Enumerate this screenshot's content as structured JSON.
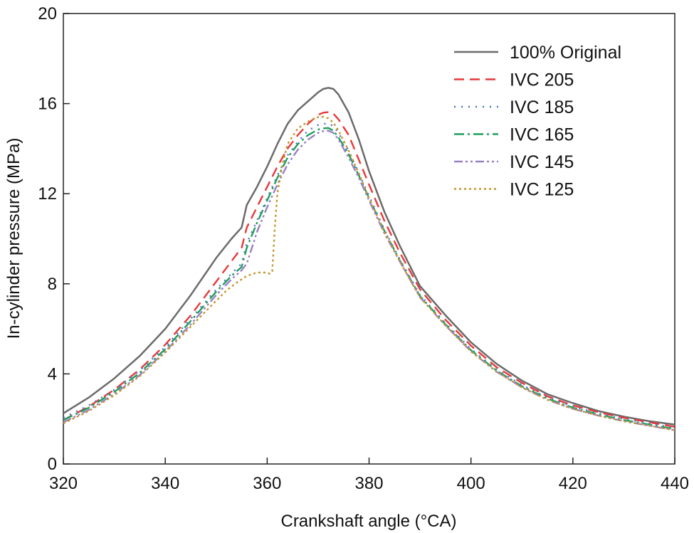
{
  "chart_data": {
    "type": "line",
    "title": "",
    "xlabel": "Crankshaft angle (°CA)",
    "ylabel": "In-cylinder pressure (MPa)",
    "xlim": [
      320,
      440
    ],
    "ylim": [
      0,
      20
    ],
    "xticks": [
      320,
      340,
      360,
      380,
      400,
      420,
      440
    ],
    "yticks": [
      0,
      4,
      8,
      12,
      16,
      20
    ],
    "grid": false,
    "legend": "top-right",
    "series": [
      {
        "name": "100% Original",
        "color": "#6b6b6b",
        "dash": "solid",
        "x": [
          320,
          325,
          330,
          335,
          340,
          345,
          350,
          353,
          355,
          356,
          358,
          360,
          362,
          364,
          366,
          368,
          370,
          371,
          372,
          373,
          374,
          376,
          378,
          380,
          383,
          386,
          390,
          395,
          400,
          405,
          410,
          415,
          420,
          425,
          430,
          435,
          440
        ],
        "y": [
          2.25,
          2.95,
          3.8,
          4.8,
          6.0,
          7.5,
          9.15,
          10.0,
          10.5,
          11.5,
          12.3,
          13.2,
          14.2,
          15.1,
          15.7,
          16.1,
          16.5,
          16.65,
          16.7,
          16.65,
          16.4,
          15.6,
          14.4,
          13.0,
          11.2,
          9.7,
          7.9,
          6.6,
          5.4,
          4.45,
          3.7,
          3.1,
          2.7,
          2.35,
          2.1,
          1.9,
          1.75
        ]
      },
      {
        "name": "IVC 205",
        "color": "#e8383a",
        "dash": "14,8",
        "x": [
          320,
          325,
          330,
          335,
          340,
          345,
          350,
          353,
          355,
          356,
          358,
          360,
          362,
          364,
          366,
          368,
          370,
          371,
          372,
          373,
          374,
          376,
          378,
          380,
          383,
          386,
          390,
          395,
          400,
          405,
          410,
          415,
          420,
          425,
          430,
          435,
          440
        ],
        "y": [
          1.95,
          2.55,
          3.3,
          4.2,
          5.3,
          6.6,
          8.1,
          9.0,
          9.6,
          10.5,
          11.4,
          12.3,
          13.2,
          14.0,
          14.6,
          15.1,
          15.5,
          15.6,
          15.62,
          15.55,
          15.3,
          14.6,
          13.5,
          12.4,
          10.8,
          9.4,
          7.75,
          6.4,
          5.25,
          4.3,
          3.6,
          3.0,
          2.6,
          2.3,
          2.05,
          1.85,
          1.65
        ]
      },
      {
        "name": "IVC 185",
        "color": "#4a74c4",
        "dash": "2,8",
        "x": [
          320,
          325,
          330,
          335,
          340,
          345,
          350,
          353,
          355,
          356,
          358,
          360,
          362,
          364,
          366,
          368,
          370,
          371,
          372,
          373,
          374,
          376,
          378,
          380,
          383,
          386,
          390,
          395,
          400,
          405,
          410,
          415,
          420,
          425,
          430,
          435,
          440
        ],
        "y": [
          2.05,
          2.6,
          3.3,
          4.15,
          5.2,
          6.45,
          7.75,
          8.45,
          8.9,
          9.8,
          10.8,
          11.8,
          12.8,
          13.7,
          14.3,
          14.8,
          15.05,
          15.1,
          15.12,
          15.0,
          14.7,
          13.9,
          12.9,
          11.9,
          10.4,
          9.1,
          7.5,
          6.25,
          5.1,
          4.2,
          3.5,
          2.95,
          2.55,
          2.25,
          2.0,
          1.8,
          1.6
        ]
      },
      {
        "name": "IVC 165",
        "color": "#1e9e5c",
        "dash": "14,5,3,5",
        "x": [
          320,
          325,
          330,
          335,
          340,
          345,
          350,
          353,
          355,
          356,
          358,
          360,
          362,
          364,
          366,
          368,
          370,
          371,
          372,
          373,
          374,
          376,
          378,
          380,
          383,
          386,
          390,
          395,
          400,
          405,
          410,
          415,
          420,
          425,
          430,
          435,
          440
        ],
        "y": [
          1.95,
          2.5,
          3.2,
          4.05,
          5.1,
          6.35,
          7.65,
          8.35,
          8.75,
          9.6,
          10.7,
          11.7,
          12.7,
          13.6,
          14.2,
          14.6,
          14.85,
          14.9,
          14.92,
          14.8,
          14.5,
          13.75,
          12.8,
          11.8,
          10.35,
          9.05,
          7.45,
          6.2,
          5.05,
          4.15,
          3.45,
          2.9,
          2.5,
          2.2,
          1.95,
          1.75,
          1.55
        ]
      },
      {
        "name": "IVC 145",
        "color": "#9b7fc4",
        "dash": "12,4,3,4,3,4",
        "x": [
          320,
          325,
          330,
          335,
          340,
          345,
          350,
          353,
          355,
          356,
          357,
          358,
          360,
          362,
          364,
          366,
          368,
          370,
          371,
          372,
          373,
          374,
          376,
          378,
          380,
          383,
          386,
          390,
          395,
          400,
          405,
          410,
          415,
          420,
          425,
          430,
          435,
          440
        ],
        "y": [
          1.85,
          2.4,
          3.1,
          3.95,
          5.0,
          6.2,
          7.5,
          8.2,
          8.6,
          8.9,
          9.6,
          10.3,
          11.4,
          12.4,
          13.3,
          13.95,
          14.4,
          14.7,
          14.78,
          14.8,
          14.7,
          14.4,
          13.6,
          12.7,
          11.7,
          10.25,
          9.0,
          7.4,
          6.15,
          5.0,
          4.1,
          3.4,
          2.85,
          2.45,
          2.15,
          1.9,
          1.7,
          1.5
        ]
      },
      {
        "name": "IVC 125",
        "color": "#c4962c",
        "dash": "3,4",
        "x": [
          320,
          325,
          330,
          335,
          340,
          345,
          350,
          352,
          354,
          356,
          358,
          360,
          360.5,
          361,
          361.5,
          362,
          363,
          364,
          366,
          368,
          370,
          371,
          372,
          373,
          374,
          376,
          378,
          380,
          383,
          386,
          390,
          395,
          400,
          405,
          410,
          415,
          420,
          425,
          430,
          435,
          440
        ],
        "y": [
          1.8,
          2.35,
          3.05,
          3.9,
          4.95,
          6.1,
          7.25,
          7.7,
          8.05,
          8.35,
          8.5,
          8.5,
          8.45,
          8.55,
          10.5,
          12.0,
          13.3,
          14.2,
          14.9,
          15.2,
          15.4,
          15.42,
          15.35,
          15.15,
          14.8,
          13.9,
          12.9,
          11.8,
          10.3,
          9.0,
          7.4,
          6.15,
          5.0,
          4.1,
          3.4,
          2.85,
          2.45,
          2.15,
          1.9,
          1.7,
          1.5
        ]
      }
    ]
  }
}
